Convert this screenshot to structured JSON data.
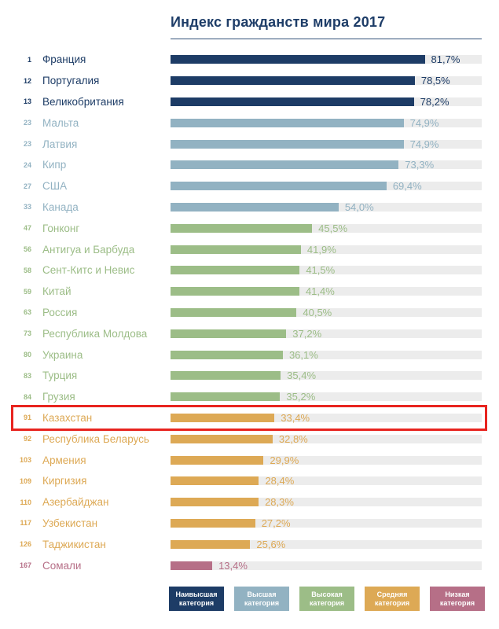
{
  "title": "Индекс гражданств мира 2017",
  "colors": {
    "highest": "#1d3c66",
    "higher": "#92b2c2",
    "high": "#9cbd87",
    "medium": "#dda955",
    "low": "#b66f87",
    "track": "#ececec",
    "highlight_border": "#e8241f",
    "title": "#1e3d68"
  },
  "chart_data": {
    "type": "bar",
    "orientation": "horizontal",
    "title": "Индекс гражданств мира 2017",
    "xlim": [
      0,
      100
    ],
    "value_suffix": "%",
    "grid": false,
    "legend_position": "bottom",
    "rows": [
      {
        "rank": "1",
        "country": "Франция",
        "value": 81.7,
        "label": "81,7%",
        "category": "highest",
        "highlighted": false
      },
      {
        "rank": "12",
        "country": "Португалия",
        "value": 78.5,
        "label": "78,5%",
        "category": "highest",
        "highlighted": false
      },
      {
        "rank": "13",
        "country": "Великобритания",
        "value": 78.2,
        "label": "78,2%",
        "category": "highest",
        "highlighted": false
      },
      {
        "rank": "23",
        "country": "Мальта",
        "value": 74.9,
        "label": "74,9%",
        "category": "higher",
        "highlighted": false
      },
      {
        "rank": "23",
        "country": "Латвия",
        "value": 74.9,
        "label": "74,9%",
        "category": "higher",
        "highlighted": false
      },
      {
        "rank": "24",
        "country": "Кипр",
        "value": 73.3,
        "label": "73,3%",
        "category": "higher",
        "highlighted": false
      },
      {
        "rank": "27",
        "country": "США",
        "value": 69.4,
        "label": "69,4%",
        "category": "higher",
        "highlighted": false
      },
      {
        "rank": "33",
        "country": "Канада",
        "value": 54.0,
        "label": "54,0%",
        "category": "higher",
        "highlighted": false
      },
      {
        "rank": "47",
        "country": "Гонконг",
        "value": 45.5,
        "label": "45,5%",
        "category": "high",
        "highlighted": false
      },
      {
        "rank": "56",
        "country": "Антигуа и Барбуда",
        "value": 41.9,
        "label": "41,9%",
        "category": "high",
        "highlighted": false
      },
      {
        "rank": "58",
        "country": "Сент-Китс и Невис",
        "value": 41.5,
        "label": "41,5%",
        "category": "high",
        "highlighted": false
      },
      {
        "rank": "59",
        "country": "Китай",
        "value": 41.4,
        "label": "41,4%",
        "category": "high",
        "highlighted": false
      },
      {
        "rank": "63",
        "country": "Россия",
        "value": 40.5,
        "label": "40,5%",
        "category": "high",
        "highlighted": false
      },
      {
        "rank": "73",
        "country": "Республика Молдова",
        "value": 37.2,
        "label": "37,2%",
        "category": "high",
        "highlighted": false
      },
      {
        "rank": "80",
        "country": "Украина",
        "value": 36.1,
        "label": "36,1%",
        "category": "high",
        "highlighted": false
      },
      {
        "rank": "83",
        "country": "Турция",
        "value": 35.4,
        "label": "35,4%",
        "category": "high",
        "highlighted": false
      },
      {
        "rank": "84",
        "country": "Грузия",
        "value": 35.2,
        "label": "35,2%",
        "category": "high",
        "highlighted": false
      },
      {
        "rank": "91",
        "country": "Казахстан",
        "value": 33.4,
        "label": "33,4%",
        "category": "medium",
        "highlighted": true
      },
      {
        "rank": "92",
        "country": "Республика Беларусь",
        "value": 32.8,
        "label": "32,8%",
        "category": "medium",
        "highlighted": false
      },
      {
        "rank": "103",
        "country": "Армения",
        "value": 29.9,
        "label": "29,9%",
        "category": "medium",
        "highlighted": false
      },
      {
        "rank": "109",
        "country": "Киргизия",
        "value": 28.4,
        "label": "28,4%",
        "category": "medium",
        "highlighted": false
      },
      {
        "rank": "110",
        "country": "Азербайджан",
        "value": 28.3,
        "label": "28,3%",
        "category": "medium",
        "highlighted": false
      },
      {
        "rank": "117",
        "country": "Узбекистан",
        "value": 27.2,
        "label": "27,2%",
        "category": "medium",
        "highlighted": false
      },
      {
        "rank": "126",
        "country": "Таджикистан",
        "value": 25.6,
        "label": "25,6%",
        "category": "medium",
        "highlighted": false
      },
      {
        "rank": "167",
        "country": "Сомали",
        "value": 13.4,
        "label": "13,4%",
        "category": "low",
        "highlighted": false
      }
    ],
    "legend": [
      {
        "label": "Наивысшая категория",
        "category": "highest"
      },
      {
        "label": "Высшая категория",
        "category": "higher"
      },
      {
        "label": "Высокая категория",
        "category": "high"
      },
      {
        "label": "Средняя категория",
        "category": "medium"
      },
      {
        "label": "Низкая категория",
        "category": "low"
      }
    ]
  }
}
